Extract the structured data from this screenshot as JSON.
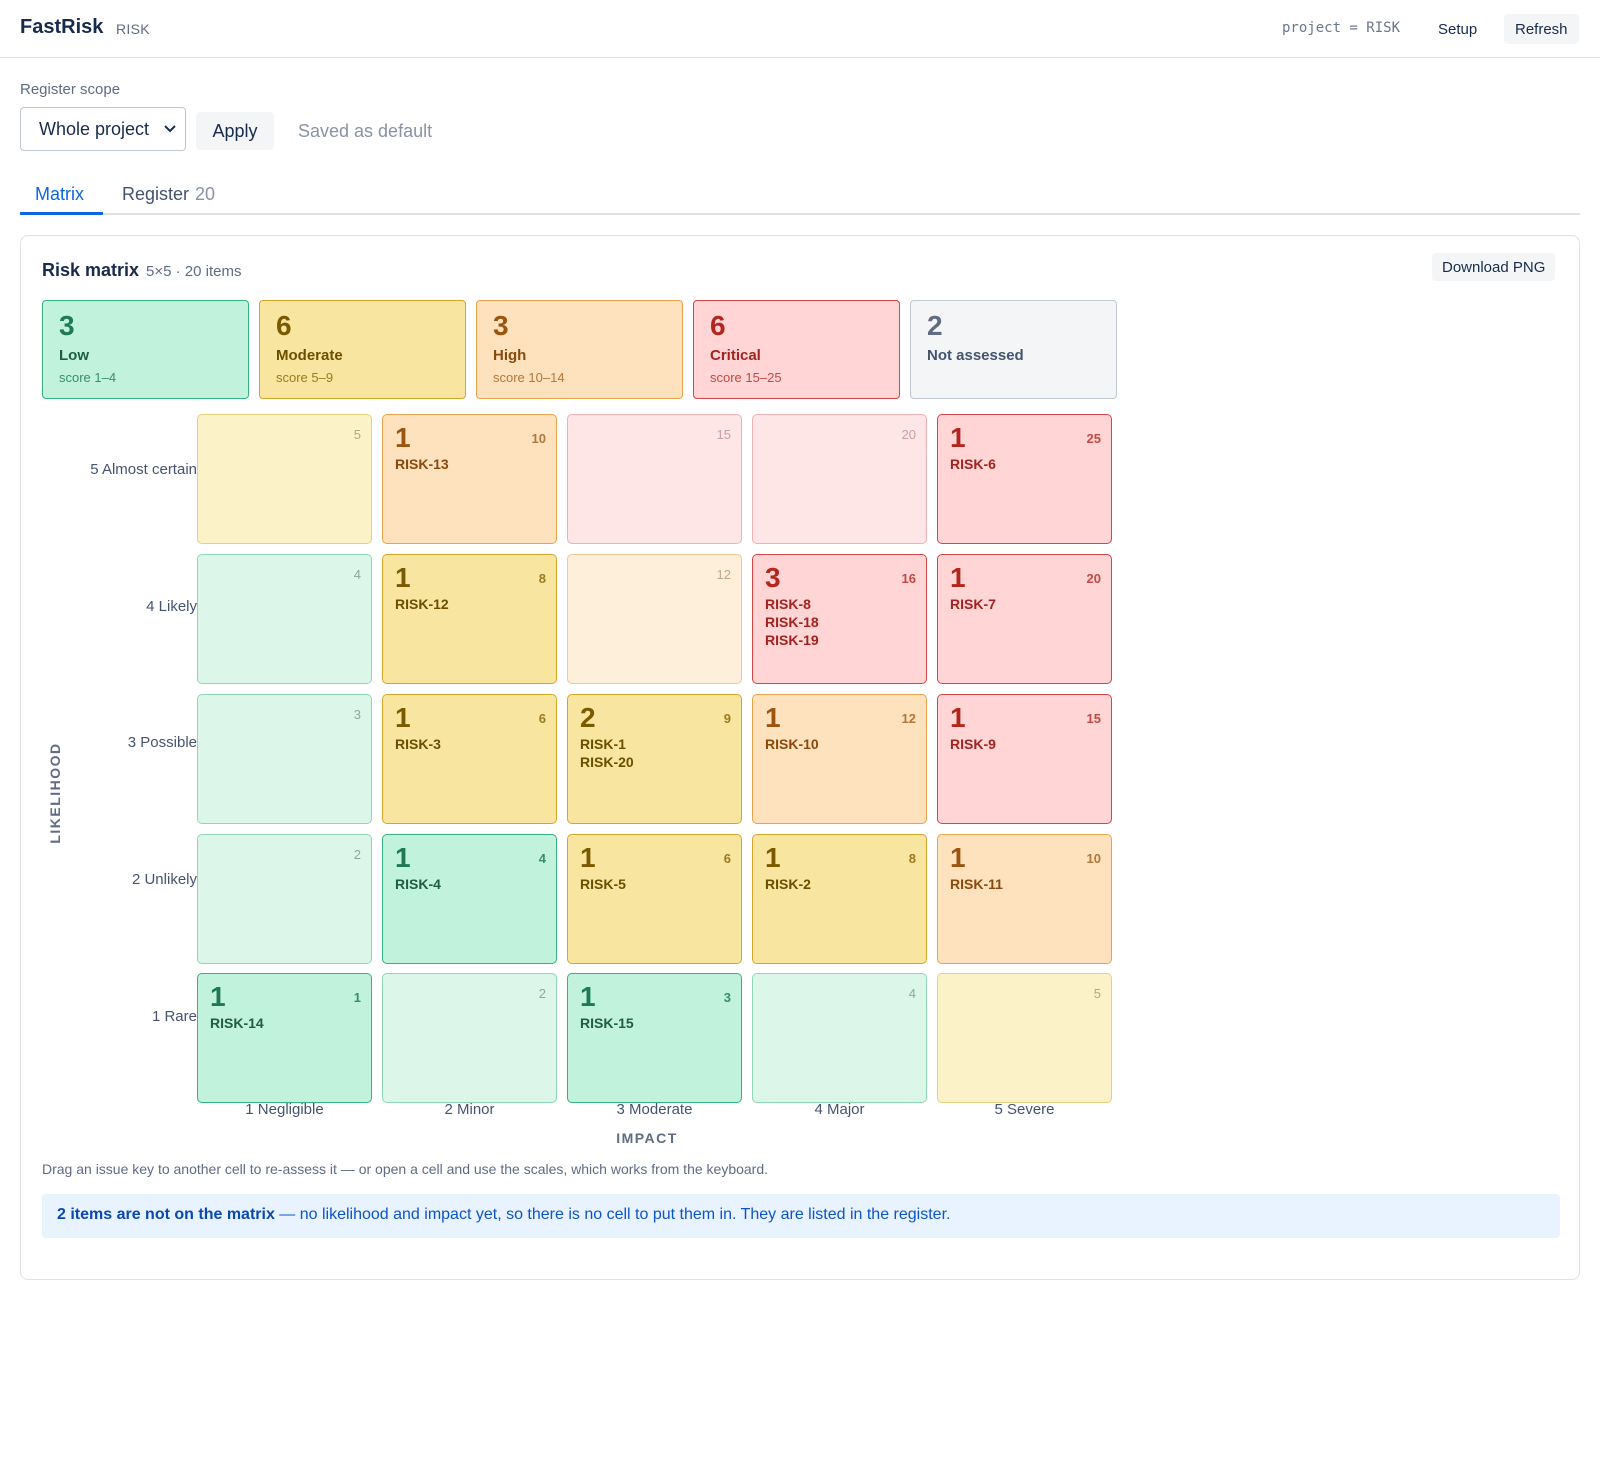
{
  "header": {
    "app_name": "FastRisk",
    "project_key": "RISK",
    "jql": "project = RISK",
    "setup_label": "Setup",
    "refresh_label": "Refresh"
  },
  "scope": {
    "label": "Register scope",
    "selected": "Whole project",
    "apply_label": "Apply",
    "saved_note": "Saved as default"
  },
  "tabs": {
    "matrix_label": "Matrix",
    "register_label": "Register",
    "register_count": "20"
  },
  "panel": {
    "title": "Risk matrix",
    "subtitle": "5×5 · 20 items",
    "download_label": "Download PNG"
  },
  "summary": {
    "low": {
      "count": "3",
      "label": "Low",
      "range": "score 1–4"
    },
    "moderate": {
      "count": "6",
      "label": "Moderate",
      "range": "score 5–9"
    },
    "high": {
      "count": "3",
      "label": "High",
      "range": "score 10–14"
    },
    "critical": {
      "count": "6",
      "label": "Critical",
      "range": "score 15–25"
    },
    "not_assessed": {
      "count": "2",
      "label": "Not assessed"
    }
  },
  "axes": {
    "likelihood_title": "LIKELIHOOD",
    "impact_title": "IMPACT",
    "rows": [
      "5 Almost certain",
      "4 Likely",
      "3 Possible",
      "2 Unlikely",
      "1 Rare"
    ],
    "cols": [
      "1 Negligible",
      "2 Minor",
      "3 Moderate",
      "4 Major",
      "5 Severe"
    ]
  },
  "colors": {
    "low": "#c0f2dc",
    "moderate": "#f8e59f",
    "high": "#fde2bd",
    "critical": "#ffd5d5",
    "accent": "#0c66e4"
  },
  "matrix": {
    "rows": [
      [
        {
          "score": "5",
          "level": "mod",
          "count": "",
          "keys": []
        },
        {
          "score": "10",
          "level": "high",
          "count": "1",
          "keys": [
            "RISK-13"
          ]
        },
        {
          "score": "15",
          "level": "crit",
          "count": "",
          "keys": []
        },
        {
          "score": "20",
          "level": "crit",
          "count": "",
          "keys": []
        },
        {
          "score": "25",
          "level": "crit",
          "count": "1",
          "keys": [
            "RISK-6"
          ]
        }
      ],
      [
        {
          "score": "4",
          "level": "low",
          "count": "",
          "keys": []
        },
        {
          "score": "8",
          "level": "mod",
          "count": "1",
          "keys": [
            "RISK-12"
          ]
        },
        {
          "score": "12",
          "level": "high",
          "count": "",
          "keys": []
        },
        {
          "score": "16",
          "level": "crit",
          "count": "3",
          "keys": [
            "RISK-8",
            "RISK-18",
            "RISK-19"
          ]
        },
        {
          "score": "20",
          "level": "crit",
          "count": "1",
          "keys": [
            "RISK-7"
          ]
        }
      ],
      [
        {
          "score": "3",
          "level": "low",
          "count": "",
          "keys": []
        },
        {
          "score": "6",
          "level": "mod",
          "count": "1",
          "keys": [
            "RISK-3"
          ]
        },
        {
          "score": "9",
          "level": "mod",
          "count": "2",
          "keys": [
            "RISK-1",
            "RISK-20"
          ]
        },
        {
          "score": "12",
          "level": "high",
          "count": "1",
          "keys": [
            "RISK-10"
          ]
        },
        {
          "score": "15",
          "level": "crit",
          "count": "1",
          "keys": [
            "RISK-9"
          ]
        }
      ],
      [
        {
          "score": "2",
          "level": "low",
          "count": "",
          "keys": []
        },
        {
          "score": "4",
          "level": "low",
          "count": "1",
          "keys": [
            "RISK-4"
          ]
        },
        {
          "score": "6",
          "level": "mod",
          "count": "1",
          "keys": [
            "RISK-5"
          ]
        },
        {
          "score": "8",
          "level": "mod",
          "count": "1",
          "keys": [
            "RISK-2"
          ]
        },
        {
          "score": "10",
          "level": "high",
          "count": "1",
          "keys": [
            "RISK-11"
          ]
        }
      ],
      [
        {
          "score": "1",
          "level": "low",
          "count": "1",
          "keys": [
            "RISK-14"
          ]
        },
        {
          "score": "2",
          "level": "low",
          "count": "",
          "keys": []
        },
        {
          "score": "3",
          "level": "low",
          "count": "1",
          "keys": [
            "RISK-15"
          ]
        },
        {
          "score": "4",
          "level": "low",
          "count": "",
          "keys": []
        },
        {
          "score": "5",
          "level": "mod",
          "count": "",
          "keys": []
        }
      ]
    ]
  },
  "footer": {
    "hint": "Drag an issue key to another cell to re-assess it — or open a cell and use the scales, which works from the keyboard.",
    "banner_bold": "2 items are not on the matrix",
    "banner_rest": " — no likelihood and impact yet, so there is no cell to put them in. They are listed in the register."
  }
}
